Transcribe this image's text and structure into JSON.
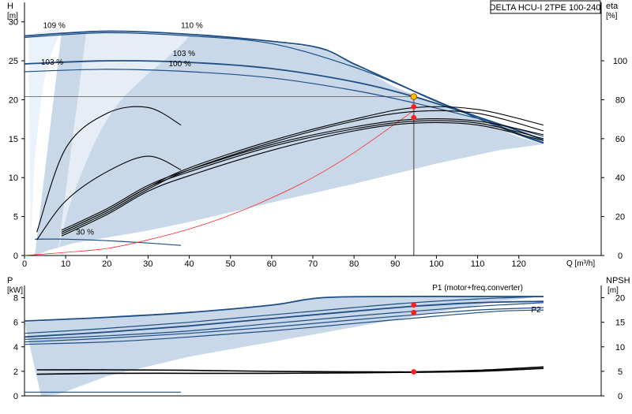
{
  "title": "DELTA HCU-I 2TPE 100-240",
  "colors": {
    "band": "#c8d8e8",
    "curve": "#1e4e85",
    "efficiency": "#000000",
    "system": "#ff2a2a",
    "duty": "#ff1f1f",
    "duty_outline": "#a05000",
    "duty_fill": "#f5c400",
    "light": "#e8f2fb"
  },
  "chart_data": [
    {
      "type": "line",
      "title": "DELTA HCU-I 2TPE 100-240",
      "xlabel": "Q [m³/h]",
      "ylabel": "H",
      "yunit": "[m]",
      "y2label": "eta",
      "y2unit": "[%]",
      "xlim": [
        0,
        140
      ],
      "ylim": [
        0,
        32.5
      ],
      "y2lim": [
        0,
        130
      ],
      "xticks": [
        0,
        10,
        20,
        30,
        40,
        50,
        60,
        70,
        80,
        90,
        100,
        110,
        120
      ],
      "xtick_labels": [
        "0",
        "10",
        "20",
        "30",
        "40",
        "50",
        "60",
        "70",
        "80",
        "90",
        "100",
        "110",
        "120"
      ],
      "yticks": [
        0,
        5,
        10,
        15,
        20,
        25,
        30
      ],
      "ytick_labels": [
        "0",
        "5",
        "10",
        "15",
        "20",
        "25",
        "30"
      ],
      "y2ticks": [
        0,
        20,
        40,
        60,
        80,
        100
      ],
      "y2tick_labels": [
        "0",
        "20",
        "40",
        "60",
        "80",
        "100"
      ],
      "operating_range": {
        "top": [
          [
            9,
            28.6
          ],
          [
            20,
            28.7
          ],
          [
            40,
            28.2
          ],
          [
            60,
            27.4
          ],
          [
            72,
            26.6
          ],
          [
            80,
            24.5
          ],
          [
            90,
            21.6
          ],
          [
            100,
            19.5
          ],
          [
            110,
            17.5
          ],
          [
            120,
            15.2
          ],
          [
            126,
            14.3
          ]
        ],
        "bottom": [
          [
            126,
            14.3
          ],
          [
            115,
            13.5
          ],
          [
            100,
            11.8
          ],
          [
            80,
            9.2
          ],
          [
            60,
            6.8
          ],
          [
            40,
            4.3
          ],
          [
            30,
            3.2
          ],
          [
            20,
            2.3
          ],
          [
            12,
            1.6
          ],
          [
            6,
            0.7
          ],
          [
            2.5,
            0
          ]
        ]
      },
      "guide_left": [
        [
          1,
          28.3
        ],
        [
          3,
          28.6
        ],
        [
          5,
          28.8
        ],
        [
          7,
          29.0
        ],
        [
          8.5,
          28.7
        ],
        [
          5,
          23
        ],
        [
          2.5,
          12
        ],
        [
          1.5,
          0
        ]
      ],
      "guide_right": [
        [
          15,
          28.6
        ],
        [
          30,
          28.6
        ],
        [
          40,
          28.3
        ],
        [
          22,
          19
        ],
        [
          12,
          8
        ],
        [
          8,
          0
        ]
      ],
      "series": [
        {
          "name": "109 %",
          "axis": "left",
          "x": [
            0,
            20,
            40,
            60,
            72,
            80,
            90,
            100,
            110,
            120,
            126
          ],
          "y": [
            28.2,
            28.8,
            28.4,
            27.5,
            26.6,
            24.6,
            22.2,
            19.8,
            17.8,
            15.6,
            14.5
          ]
        },
        {
          "name": "110 %",
          "axis": "left",
          "x": [
            0,
            20,
            40,
            60,
            80,
            95,
            110,
            120,
            126
          ],
          "y": [
            28.0,
            28.6,
            28.2,
            27.2,
            24.2,
            21.0,
            17.6,
            15.5,
            14.4
          ]
        },
        {
          "name": "103 %",
          "axis": "left",
          "x": [
            0,
            20,
            40,
            60,
            80,
            94.5,
            110,
            120,
            126
          ],
          "y": [
            24.6,
            25.0,
            24.8,
            24.0,
            22.3,
            20.4,
            17.8,
            16.0,
            14.8
          ]
        },
        {
          "name": "100 %",
          "axis": "left",
          "x": [
            0,
            20,
            40,
            60,
            80,
            94.5,
            110,
            120,
            126
          ],
          "y": [
            23.6,
            23.9,
            23.6,
            22.8,
            21.2,
            19.6,
            17.6,
            16.2,
            15.3
          ]
        },
        {
          "name": "30 %",
          "axis": "left",
          "x": [
            2.5,
            10,
            20,
            30,
            38
          ],
          "y": [
            2.1,
            2.1,
            1.9,
            1.6,
            1.3
          ]
        },
        {
          "name": "",
          "kind": "system",
          "axis": "left",
          "x": [
            0,
            10,
            20,
            30,
            40,
            50,
            60,
            70,
            80,
            94.5
          ],
          "y": [
            0,
            0.4,
            0.9,
            2.0,
            3.4,
            5.2,
            7.4,
            10.0,
            13.2,
            18.6
          ]
        },
        {
          "name": "",
          "kind": "eff",
          "axis": "right",
          "x": [
            3,
            10,
            20,
            30,
            38
          ],
          "y": [
            12,
            55,
            73,
            76,
            67
          ]
        },
        {
          "name": "",
          "kind": "eff",
          "axis": "right",
          "x": [
            3,
            10,
            20,
            30,
            38
          ],
          "y": [
            8,
            28,
            43,
            51,
            44
          ]
        },
        {
          "name": "",
          "kind": "eff",
          "axis": "right",
          "x": [
            9,
            20,
            30,
            40,
            60,
            80,
            95,
            110,
            126
          ],
          "y": [
            12,
            23,
            35,
            45,
            59,
            70,
            76,
            75,
            67
          ]
        },
        {
          "name": "",
          "kind": "eff",
          "axis": "right",
          "x": [
            9,
            20,
            30,
            40,
            60,
            80,
            95,
            110,
            126
          ],
          "y": [
            11,
            22,
            34,
            44,
            58,
            69,
            74,
            73,
            64
          ]
        },
        {
          "name": "",
          "kind": "eff",
          "axis": "right",
          "x": [
            9,
            20,
            30,
            40,
            60,
            80,
            95,
            110,
            126
          ],
          "y": [
            13,
            24,
            36,
            44,
            57,
            66,
            70,
            69,
            62
          ]
        },
        {
          "name": "",
          "kind": "eff",
          "axis": "right",
          "x": [
            9,
            20,
            30,
            40,
            60,
            80,
            95,
            110,
            126
          ],
          "y": [
            12,
            23,
            35,
            43,
            56,
            65,
            69,
            68,
            60
          ]
        },
        {
          "name": "",
          "kind": "eff",
          "axis": "right",
          "x": [
            9,
            20,
            30,
            40,
            60,
            80,
            95,
            110,
            126
          ],
          "y": [
            10,
            21,
            33,
            41,
            54,
            64,
            68,
            67,
            59
          ]
        }
      ],
      "duty_line": {
        "x": 94.5,
        "y": 20.4
      },
      "duty_points": [
        {
          "axis": "left",
          "x": 94.5,
          "y": 20.4,
          "style": "yellow"
        },
        {
          "axis": "left",
          "x": 94.5,
          "y": 19.1,
          "style": "red"
        },
        {
          "axis": "left",
          "x": 94.5,
          "y": 17.7,
          "style": "red"
        }
      ],
      "labels": [
        {
          "text": "109 %",
          "x": 4.5,
          "y": 29.2
        },
        {
          "text": "110 %",
          "x": 38,
          "y": 29.2
        },
        {
          "text": "103 %",
          "x": 36,
          "y": 25.6
        },
        {
          "text": "103 %",
          "x": 4,
          "y": 24.5
        },
        {
          "text": "100 %",
          "x": 35,
          "y": 24.3
        },
        {
          "text": "30 %",
          "x": 12.5,
          "y": 2.7
        }
      ]
    },
    {
      "type": "line",
      "ylabel": "P",
      "yunit": "[kW]",
      "y2label": "NPSH",
      "y2unit": "[m]",
      "xlim": [
        0,
        140
      ],
      "ylim": [
        0,
        9
      ],
      "y2lim": [
        0,
        22.5
      ],
      "yticks": [
        0,
        2,
        4,
        6,
        8
      ],
      "ytick_labels": [
        "0",
        "2",
        "4",
        "6",
        "8"
      ],
      "y2ticks": [
        0,
        5,
        10,
        15,
        20
      ],
      "y2tick_labels": [
        "0",
        "5",
        "10",
        "15",
        "20"
      ],
      "operating_range": {
        "top": [
          [
            0,
            6.0
          ],
          [
            20,
            6.4
          ],
          [
            40,
            6.8
          ],
          [
            60,
            7.4
          ],
          [
            72,
            8.0
          ],
          [
            90,
            8.1
          ],
          [
            110,
            8.1
          ],
          [
            126,
            8.1
          ]
        ],
        "bottom": [
          [
            126,
            8.1
          ],
          [
            115,
            7.7
          ],
          [
            100,
            6.8
          ],
          [
            80,
            5.6
          ],
          [
            60,
            4.4
          ],
          [
            40,
            3.2
          ],
          [
            30,
            2.4
          ],
          [
            20,
            1.6
          ],
          [
            12,
            0.6
          ],
          [
            8,
            0.1
          ],
          [
            4,
            0
          ]
        ]
      },
      "series": [
        {
          "name": "P1 (motor+freq.converter)",
          "axis": "left",
          "x": [
            0,
            20,
            40,
            60,
            72,
            90,
            110,
            126
          ],
          "y": [
            6.1,
            6.4,
            6.8,
            7.4,
            8.0,
            8.1,
            8.1,
            8.1
          ]
        },
        {
          "name": "",
          "axis": "left",
          "x": [
            0,
            20,
            40,
            60,
            80,
            94.5,
            110,
            126
          ],
          "y": [
            5.1,
            5.5,
            6.0,
            6.6,
            7.2,
            7.6,
            7.9,
            8.1
          ]
        },
        {
          "name": "",
          "axis": "left",
          "x": [
            0,
            20,
            40,
            60,
            80,
            94.5,
            110,
            126
          ],
          "y": [
            4.8,
            5.2,
            5.7,
            6.3,
            6.9,
            7.3,
            7.6,
            7.7
          ]
        },
        {
          "name": "",
          "axis": "left",
          "x": [
            0,
            20,
            40,
            60,
            80,
            94.5,
            110,
            126
          ],
          "y": [
            4.6,
            4.9,
            5.3,
            5.9,
            6.5,
            6.9,
            7.3,
            7.6
          ]
        },
        {
          "name": "P2",
          "axis": "left",
          "x": [
            0,
            20,
            40,
            60,
            80,
            94.5,
            110,
            126
          ],
          "y": [
            4.4,
            4.7,
            5.1,
            5.6,
            6.2,
            6.6,
            7.0,
            7.2
          ]
        },
        {
          "name": "",
          "axis": "left",
          "x": [
            0,
            20,
            40,
            60,
            80,
            100,
            115,
            126
          ],
          "y": [
            4.2,
            4.4,
            4.8,
            5.3,
            5.9,
            6.5,
            6.9,
            7.0
          ]
        },
        {
          "name": "",
          "axis": "left",
          "x": [
            0,
            10,
            20,
            30,
            38
          ],
          "y": [
            0.3,
            0.3,
            0.3,
            0.3,
            0.3
          ]
        },
        {
          "name": "",
          "kind": "npsh",
          "axis": "right",
          "x": [
            3,
            20,
            40,
            60,
            80,
            94.5,
            110,
            126
          ],
          "y": [
            5.3,
            5.3,
            5.2,
            5.0,
            4.9,
            4.9,
            5.2,
            5.9
          ]
        },
        {
          "name": "",
          "kind": "npsh",
          "axis": "right",
          "x": [
            3,
            20,
            40,
            60,
            80,
            94.5,
            110,
            126
          ],
          "y": [
            4.4,
            4.6,
            4.6,
            4.6,
            4.7,
            4.8,
            5.0,
            5.6
          ]
        }
      ],
      "duty_points": [
        {
          "axis": "left",
          "x": 94.5,
          "y": 7.4
        },
        {
          "axis": "left",
          "x": 94.5,
          "y": 6.8
        },
        {
          "axis": "right",
          "x": 94.5,
          "y": 4.9
        }
      ],
      "labels": [
        {
          "text": "P1 (motor+freq.converter)",
          "x": 99,
          "y": 8.6
        },
        {
          "text": "P2",
          "x": 123,
          "y": 6.8
        }
      ]
    }
  ]
}
